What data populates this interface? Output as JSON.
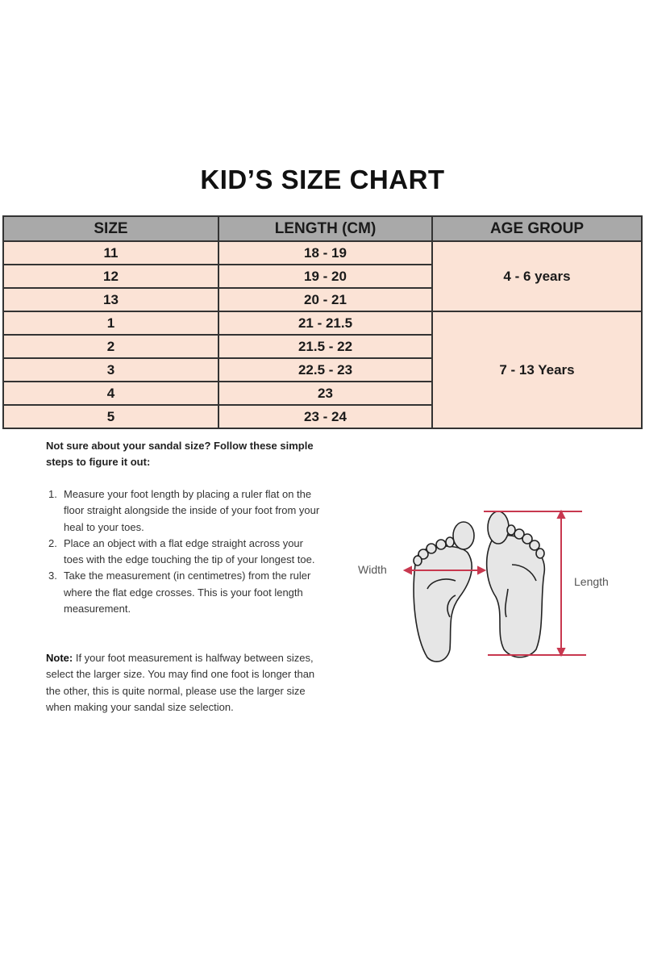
{
  "title": "KID’S SIZE CHART",
  "table": {
    "headers": [
      "SIZE",
      "LENGTH (CM)",
      "AGE GROUP"
    ],
    "rows": [
      {
        "size": "11",
        "length": "18 - 19"
      },
      {
        "size": "12",
        "length": "19 - 20"
      },
      {
        "size": "13",
        "length": "20 - 21"
      },
      {
        "size": "1",
        "length": "21 - 21.5"
      },
      {
        "size": "2",
        "length": "21.5 - 22"
      },
      {
        "size": "3",
        "length": "22.5 - 23"
      },
      {
        "size": "4",
        "length": "23"
      },
      {
        "size": "5",
        "length": "23 - 24"
      }
    ],
    "age_groups": [
      "4 - 6 years",
      "7 - 13 Years"
    ],
    "colors": {
      "header_bg": "#a9a9a9",
      "row_bg": "#fbe3d6"
    }
  },
  "intro": "Not sure about your sandal size? Follow these simple steps to figure it out:",
  "steps": [
    {
      "num": "1.",
      "text": "Measure your foot length by placing a ruler flat on the floor straight alongside the inside of your foot from your heal to your toes."
    },
    {
      "num": "2.",
      "text": "Place an object with a flat edge straight across your toes with the edge touching the tip of your longest toe."
    },
    {
      "num": "3.",
      "text": "Take the measurement (in centimetres) from the ruler where the flat edge crosses. This is your foot length measurement."
    }
  ],
  "note": {
    "label": "Note:",
    "text": " If your foot measurement is halfway between sizes, select the larger size. You may find one foot is longer than the other, this is quite normal, please use the larger size when making your sandal size selection."
  },
  "diagram": {
    "width_label": "Width",
    "length_label": "Length",
    "accent": "#c8384f"
  }
}
